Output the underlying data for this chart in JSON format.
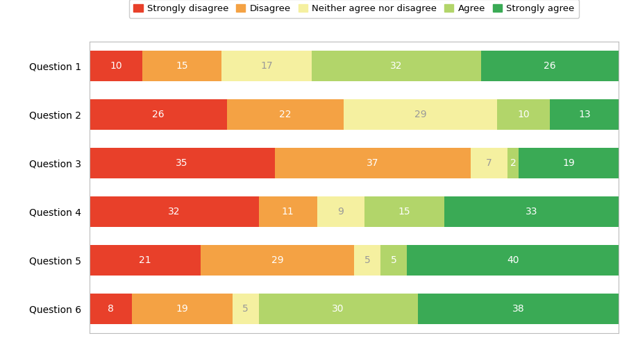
{
  "categories": [
    "Question 1",
    "Question 2",
    "Question 3",
    "Question 4",
    "Question 5",
    "Question 6"
  ],
  "series": [
    {
      "label": "Strongly disagree",
      "color": "#e8402a",
      "values": [
        10,
        26,
        35,
        32,
        21,
        8
      ]
    },
    {
      "label": "Disagree",
      "color": "#f4a244",
      "values": [
        15,
        22,
        37,
        11,
        29,
        19
      ]
    },
    {
      "label": "Neither agree nor disagree",
      "color": "#f5f0a0",
      "values": [
        17,
        29,
        7,
        9,
        5,
        5
      ]
    },
    {
      "label": "Agree",
      "color": "#b2d56a",
      "values": [
        32,
        10,
        2,
        15,
        5,
        30
      ]
    },
    {
      "label": "Strongly agree",
      "color": "#3aaa55",
      "values": [
        26,
        13,
        19,
        33,
        40,
        38
      ]
    }
  ],
  "text_color_light": "#ffffff",
  "text_color_dark": "#999999",
  "bar_height": 0.62,
  "figsize": [
    9.19,
    5.0
  ],
  "dpi": 100,
  "background_color": "#ffffff",
  "legend_fontsize": 9.5,
  "tick_fontsize": 10,
  "value_fontsize": 10
}
